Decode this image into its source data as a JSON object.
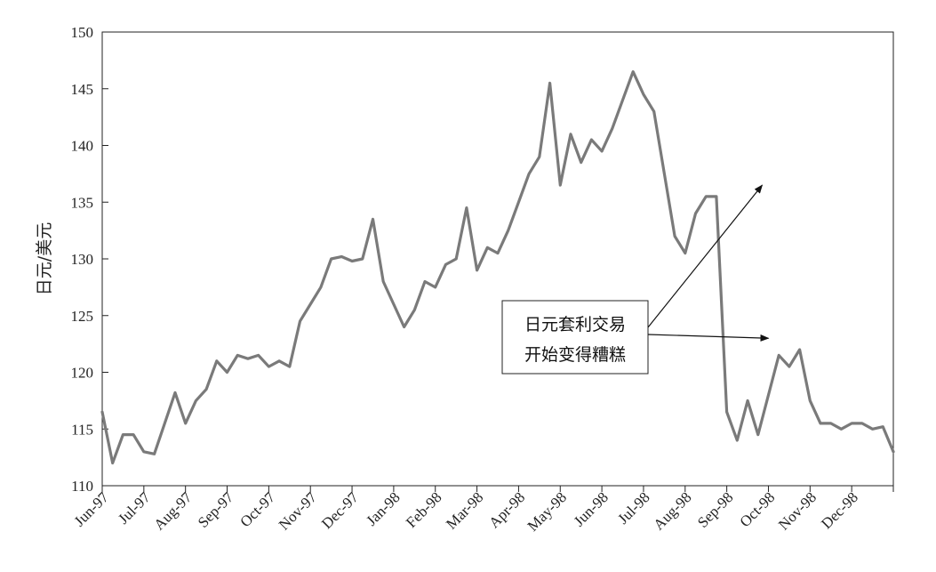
{
  "chart_data": {
    "type": "line",
    "title": "",
    "xlabel": "",
    "ylabel": "日元/美元",
    "ylim": [
      110,
      150
    ],
    "yticks": [
      110,
      115,
      120,
      125,
      130,
      135,
      140,
      145,
      150
    ],
    "x_ticks": [
      "Jun-97",
      "Jul-97",
      "Aug-97",
      "Sep-97",
      "Oct-97",
      "Nov-97",
      "Dec-97",
      "Jan-98",
      "Feb-98",
      "Mar-98",
      "Apr-98",
      "May-98",
      "Jun-98",
      "Jul-98",
      "Aug-98",
      "Sep-98",
      "Oct-98",
      "Nov-98",
      "Dec-98"
    ],
    "grid": false,
    "line_color": "#7a7a7a",
    "series": [
      {
        "months": [
          0,
          0.25,
          0.5,
          0.75,
          1,
          1.25,
          1.5,
          1.75,
          2,
          2.25,
          2.5,
          2.75,
          3,
          3.25,
          3.5,
          3.75,
          4,
          4.25,
          4.5,
          4.75,
          5,
          5.25,
          5.5,
          5.75,
          6,
          6.25,
          6.5,
          6.75,
          7,
          7.25,
          7.5,
          7.75,
          8,
          8.25,
          8.5,
          8.75,
          9,
          9.25,
          9.5,
          9.75,
          10,
          10.25,
          10.5,
          10.75,
          11,
          11.25,
          11.5,
          11.75,
          12,
          12.25,
          12.5,
          12.75,
          13,
          13.25,
          13.5,
          13.75,
          14,
          14.25,
          14.5,
          14.75,
          15,
          15.25,
          15.5,
          15.75,
          16,
          16.25,
          16.5,
          16.75,
          17,
          17.25,
          17.5,
          17.75,
          18,
          18.25,
          18.5,
          18.75,
          19
        ],
        "values": [
          116.5,
          112,
          114.5,
          114.5,
          113,
          112.8,
          115.5,
          118.2,
          115.5,
          117.5,
          118.5,
          121,
          120,
          121.5,
          121.2,
          121.5,
          120.5,
          121,
          120.5,
          124.5,
          126,
          127.5,
          130,
          130.2,
          129.8,
          130,
          133.5,
          128,
          126,
          124,
          125.5,
          128,
          127.5,
          129.5,
          130,
          134.5,
          129,
          131,
          130.5,
          132.5,
          135,
          137.5,
          139,
          145.5,
          136.5,
          141,
          138.5,
          140.5,
          139.5,
          141.5,
          144,
          146.5,
          144.5,
          143,
          137.5,
          132,
          130.5,
          134,
          135.5,
          135.5,
          116.5,
          114,
          117.5,
          114.5,
          118,
          121.5,
          120.5,
          122,
          117.5,
          115.5,
          115.5,
          115,
          115.5,
          115.5,
          115,
          115.2,
          113
        ]
      }
    ],
    "annotation": {
      "lines": [
        "日元套利交易",
        "开始变得糟糕"
      ],
      "arrow_targets": [
        {
          "month": 15.85,
          "value": 136.5
        },
        {
          "month": 16.0,
          "value": 123
        }
      ]
    }
  }
}
